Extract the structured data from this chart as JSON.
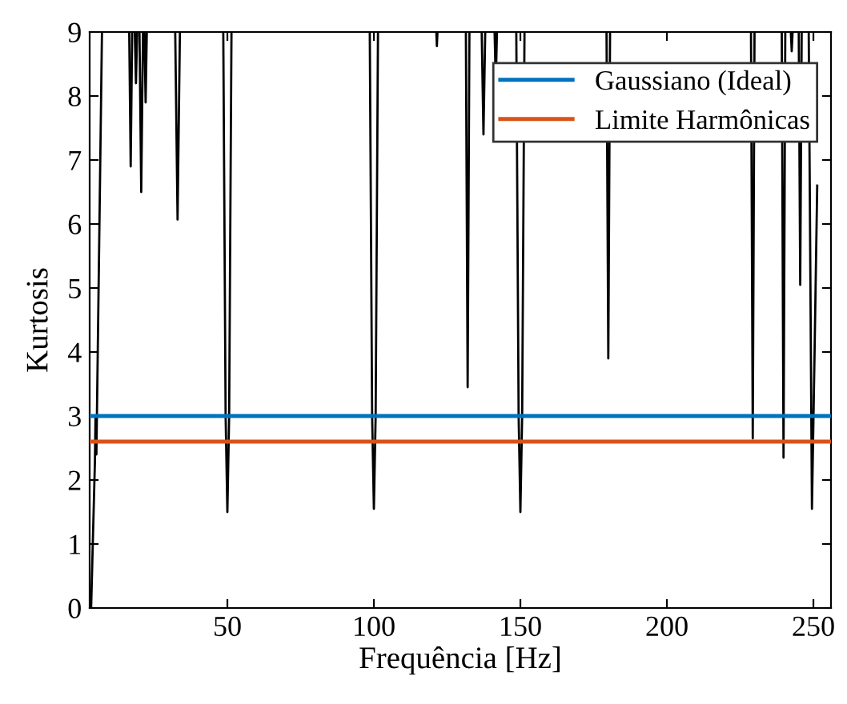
{
  "chart_data": {
    "type": "line",
    "xlabel": "Frequência [Hz]",
    "ylabel": "Kurtosis",
    "xlim": [
      3,
      256
    ],
    "ylim": [
      0,
      9
    ],
    "xticks": [
      50,
      100,
      150,
      200,
      250
    ],
    "yticks": [
      0,
      1,
      2,
      3,
      4,
      5,
      6,
      7,
      8,
      9
    ],
    "grid": false,
    "legend": "top right",
    "line_style": "solid",
    "marker": "none",
    "series": [
      {
        "color": "#000000",
        "x": [
          3.5,
          4.8,
          5.0,
          5.3,
          7.2,
          null,
          16.5,
          17.0,
          17.5,
          null,
          18.4,
          18.8,
          19.2,
          null,
          20.0,
          20.6,
          21.2,
          null,
          21.7,
          22.1,
          22.5,
          null,
          32.2,
          33.0,
          33.8,
          null,
          48.6,
          49.4,
          50.0,
          50.6,
          51.4,
          null,
          98.6,
          99.4,
          100.0,
          100.6,
          101.4,
          null,
          121.3,
          121.5,
          121.7,
          null,
          131.4,
          132.0,
          132.6,
          null,
          136.8,
          137.4,
          138.0,
          null,
          141.2,
          141.6,
          142.0,
          null,
          148.6,
          149.4,
          150.0,
          150.6,
          151.4,
          null,
          179.4,
          180.0,
          180.6,
          null,
          228.7,
          229.3,
          229.9,
          null,
          239.2,
          239.8,
          240.4,
          null,
          242.3,
          242.6,
          242.9,
          null,
          245.0,
          245.5,
          246.0,
          null,
          248.4,
          249.5,
          250.4,
          251.3
        ],
        "values": [
          0,
          2.3,
          3.0,
          2.4,
          9,
          null,
          9,
          6.9,
          9,
          null,
          9,
          8.2,
          9,
          null,
          9,
          6.5,
          9,
          null,
          9,
          7.9,
          9,
          null,
          9,
          6.07,
          9,
          null,
          9,
          3.0,
          1.5,
          3.0,
          9,
          null,
          9,
          3.0,
          1.55,
          3.0,
          9,
          null,
          9,
          8.78,
          9,
          null,
          9,
          3.45,
          9,
          null,
          9,
          7.4,
          9,
          null,
          9,
          8.2,
          9,
          null,
          9,
          3.0,
          1.5,
          3.0,
          9,
          null,
          9,
          3.9,
          9,
          null,
          9,
          2.65,
          9,
          null,
          9,
          2.35,
          9,
          null,
          9,
          8.7,
          9,
          null,
          9,
          5.05,
          9,
          null,
          9,
          1.55,
          4.0,
          6.6
        ]
      },
      {
        "name": "Gaussiano (Ideal)",
        "color": "#0072bd",
        "x": [
          3,
          256
        ],
        "values": [
          3,
          3
        ]
      },
      {
        "name": "Limite Harmônicas",
        "color": "#d95319",
        "x": [
          3,
          256
        ],
        "values": [
          2.6,
          2.6
        ]
      }
    ]
  }
}
